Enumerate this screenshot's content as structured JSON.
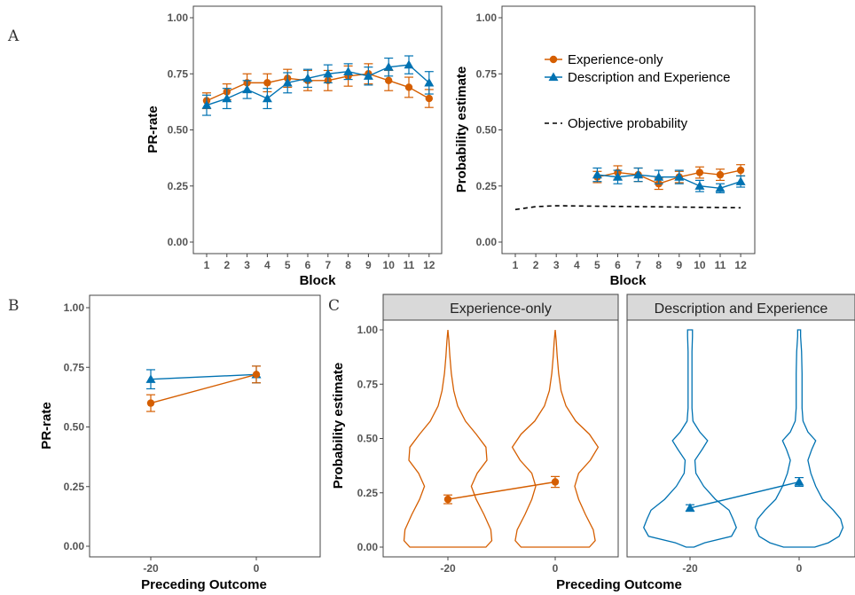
{
  "colors": {
    "exp_only": "#D55E00",
    "desc_exp": "#0072B2",
    "objective": "#000000"
  },
  "panel_labels": [
    "A",
    "B",
    "C"
  ],
  "legend": {
    "series": [
      "Experience-only",
      "Description and Experience"
    ],
    "objective": "Objective probability",
    "placement": "top-right"
  },
  "chart_data": [
    {
      "id": "A1",
      "type": "line",
      "xlabel": "Block",
      "ylabel": "PR-rate",
      "x": [
        1,
        2,
        3,
        4,
        5,
        6,
        7,
        8,
        9,
        10,
        11,
        12
      ],
      "xticks": [
        "1",
        "2",
        "3",
        "4",
        "5",
        "6",
        "7",
        "8",
        "9",
        "10",
        "11",
        "12"
      ],
      "ylim": [
        0,
        1
      ],
      "yticks": [
        "0.00",
        "0.25",
        "0.50",
        "0.75",
        "1.00"
      ],
      "series": [
        {
          "name": "Experience-only",
          "values": [
            0.63,
            0.67,
            0.71,
            0.71,
            0.73,
            0.72,
            0.72,
            0.74,
            0.75,
            0.72,
            0.69,
            0.64
          ],
          "err": [
            0.035,
            0.035,
            0.04,
            0.04,
            0.04,
            0.045,
            0.045,
            0.045,
            0.045,
            0.045,
            0.045,
            0.04
          ]
        },
        {
          "name": "Description and Experience",
          "values": [
            0.61,
            0.64,
            0.68,
            0.64,
            0.71,
            0.73,
            0.75,
            0.76,
            0.74,
            0.78,
            0.79,
            0.71
          ],
          "err": [
            0.045,
            0.045,
            0.04,
            0.045,
            0.045,
            0.04,
            0.04,
            0.035,
            0.04,
            0.04,
            0.04,
            0.05
          ]
        }
      ]
    },
    {
      "id": "A2",
      "type": "line",
      "xlabel": "Block",
      "ylabel": "Probability estimate",
      "x": [
        1,
        2,
        3,
        4,
        5,
        6,
        7,
        8,
        9,
        10,
        11,
        12
      ],
      "xticks": [
        "1",
        "2",
        "3",
        "4",
        "5",
        "6",
        "7",
        "8",
        "9",
        "10",
        "11",
        "12"
      ],
      "ylim": [
        0,
        1
      ],
      "yticks": [
        "0.00",
        "0.25",
        "0.50",
        "0.75",
        "1.00"
      ],
      "series": [
        {
          "name": "Experience-only",
          "x": [
            5,
            6,
            7,
            8,
            9,
            10,
            11,
            12
          ],
          "values": [
            0.29,
            0.31,
            0.3,
            0.26,
            0.29,
            0.31,
            0.3,
            0.32
          ],
          "err": [
            0.025,
            0.03,
            0.03,
            0.025,
            0.025,
            0.025,
            0.025,
            0.025
          ]
        },
        {
          "name": "Description and Experience",
          "x": [
            5,
            6,
            7,
            8,
            9,
            10,
            11,
            12
          ],
          "values": [
            0.3,
            0.29,
            0.3,
            0.29,
            0.29,
            0.25,
            0.24,
            0.27
          ],
          "err": [
            0.03,
            0.03,
            0.03,
            0.03,
            0.03,
            0.025,
            0.02,
            0.025
          ]
        }
      ],
      "objective_probability": {
        "x": [
          1,
          2,
          3,
          4,
          5,
          6,
          7,
          8,
          9,
          10,
          11,
          12
        ],
        "values": [
          0.145,
          0.158,
          0.162,
          0.161,
          0.16,
          0.159,
          0.158,
          0.157,
          0.156,
          0.155,
          0.154,
          0.153
        ]
      }
    },
    {
      "id": "B",
      "type": "line",
      "xlabel": "Preceding Outcome",
      "ylabel": "PR-rate",
      "categories": [
        "-20",
        "0"
      ],
      "ylim": [
        0,
        1
      ],
      "yticks": [
        "0.00",
        "0.25",
        "0.50",
        "0.75",
        "1.00"
      ],
      "series": [
        {
          "name": "Experience-only",
          "values": [
            0.6,
            0.72
          ],
          "err": [
            0.035,
            0.035
          ]
        },
        {
          "name": "Description and Experience",
          "values": [
            0.7,
            0.72
          ],
          "err": [
            0.04,
            0.035
          ]
        }
      ]
    },
    {
      "id": "C",
      "type": "violin",
      "xlabel": "Preceding Outcome",
      "ylabel": "Probability estimate",
      "categories": [
        "-20",
        "0"
      ],
      "ylim": [
        0,
        1
      ],
      "yticks": [
        "0.00",
        "0.25",
        "0.50",
        "0.75",
        "1.00"
      ],
      "facets": [
        {
          "strip": "Experience-only",
          "series": "Experience-only",
          "means": [
            0.22,
            0.3
          ],
          "err": [
            0.02,
            0.025
          ],
          "density": [
            {
              "y": [
                0,
                0.03,
                0.08,
                0.15,
                0.22,
                0.28,
                0.34,
                0.4,
                0.46,
                0.52,
                0.58,
                0.65,
                0.72,
                0.8,
                0.88,
                0.95,
                1.0
              ],
              "w": [
                0.78,
                0.9,
                0.88,
                0.74,
                0.58,
                0.48,
                0.6,
                0.8,
                0.78,
                0.58,
                0.36,
                0.2,
                0.12,
                0.07,
                0.04,
                0.02,
                0.0
              ]
            },
            {
              "y": [
                0,
                0.03,
                0.08,
                0.15,
                0.22,
                0.28,
                0.34,
                0.4,
                0.46,
                0.52,
                0.58,
                0.65,
                0.72,
                0.8,
                0.88,
                0.95,
                1.0
              ],
              "w": [
                0.7,
                0.82,
                0.78,
                0.62,
                0.48,
                0.4,
                0.48,
                0.72,
                0.88,
                0.7,
                0.42,
                0.22,
                0.12,
                0.07,
                0.04,
                0.02,
                0.0
              ]
            }
          ]
        },
        {
          "strip": "Description and Experience",
          "series": "Description and Experience",
          "means": [
            0.18,
            0.3
          ],
          "err": [
            0.015,
            0.02
          ],
          "density": [
            {
              "y": [
                0,
                0.02,
                0.05,
                0.09,
                0.13,
                0.17,
                0.22,
                0.28,
                0.34,
                0.4,
                0.45,
                0.49,
                0.53,
                0.58,
                0.64,
                0.72,
                0.8,
                0.9,
                0.97,
                1.0
              ],
              "w": [
                0.08,
                0.3,
                0.85,
                0.95,
                0.88,
                0.8,
                0.52,
                0.28,
                0.12,
                0.1,
                0.25,
                0.36,
                0.2,
                0.06,
                0.04,
                0.04,
                0.04,
                0.04,
                0.05,
                0.05
              ]
            },
            {
              "y": [
                0,
                0.02,
                0.05,
                0.09,
                0.13,
                0.17,
                0.22,
                0.28,
                0.34,
                0.4,
                0.45,
                0.49,
                0.53,
                0.58,
                0.64,
                0.72,
                0.8,
                0.9,
                0.97,
                1.0
              ],
              "w": [
                0.32,
                0.6,
                0.82,
                0.9,
                0.85,
                0.7,
                0.48,
                0.34,
                0.24,
                0.18,
                0.26,
                0.34,
                0.18,
                0.08,
                0.06,
                0.06,
                0.06,
                0.05,
                0.03,
                0.03
              ]
            }
          ]
        }
      ]
    }
  ]
}
